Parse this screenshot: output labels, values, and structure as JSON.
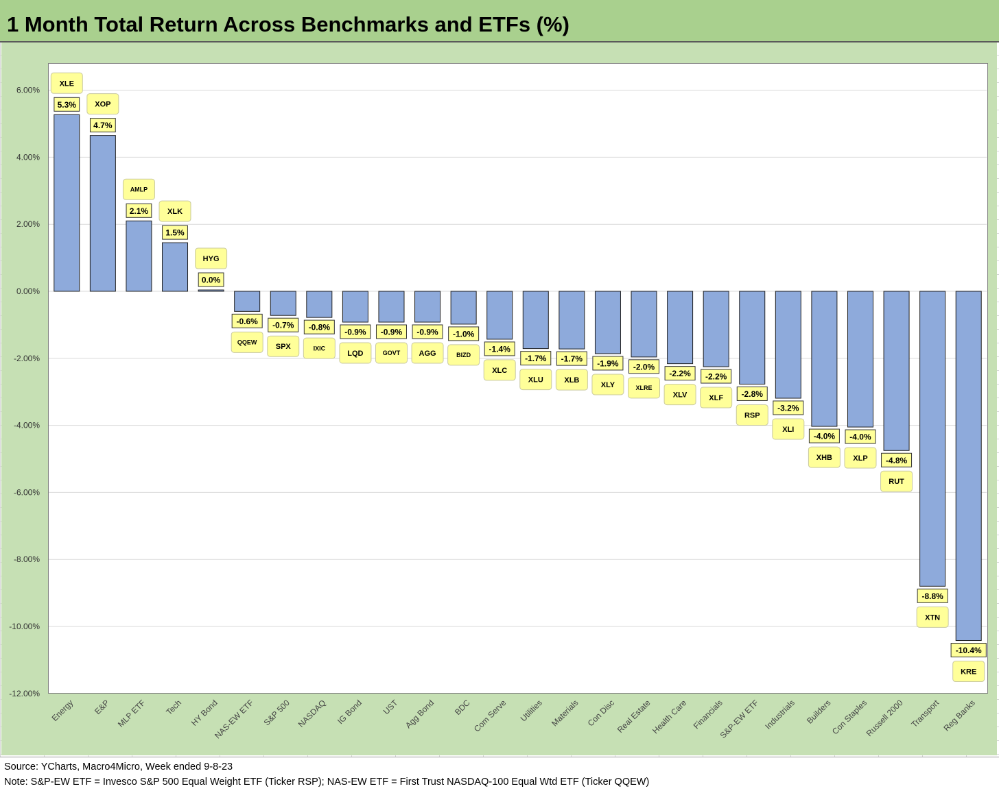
{
  "title": "1 Month Total Return Across Benchmarks and ETFs (%)",
  "footer": {
    "source": "Source: YCharts, Macro4Micro, Week ended 9-8-23",
    "note": "Note: S&P-EW ETF = Invesco S&P 500 Equal Weight ETF (Ticker RSP); NAS-EW ETF = First Trust NASDAQ-100 Equal Wtd ETF (Ticker QQEW)"
  },
  "colors": {
    "bar": "#8eaadb",
    "label_box": "#ffff99",
    "chart_bg": "#c6e0b4",
    "title_bg": "#a9d08e",
    "gridline": "#d9d9d9"
  },
  "chart_data": {
    "type": "bar",
    "title": "1 Month Total Return Across Benchmarks and ETFs (%)",
    "xlabel": "",
    "ylabel": "",
    "ylim": [
      -12,
      6.7
    ],
    "yticks": [
      6,
      4,
      2,
      0,
      -2,
      -4,
      -6,
      -8,
      -10,
      -12
    ],
    "ytick_labels": [
      "6.00%",
      "4.00%",
      "2.00%",
      "0.00%",
      "-2.00%",
      "-4.00%",
      "-6.00%",
      "-8.00%",
      "-10.00%",
      "-12.00%"
    ],
    "grid": true,
    "categories": [
      "Energy",
      "E&P",
      "MLP ETF",
      "Tech",
      "HY Bond",
      "NAS-EW ETF",
      "S&P 500",
      "NASDAQ",
      "IG Bond",
      "UST",
      "Agg Bond",
      "BDC",
      "Com Serve",
      "Utilities",
      "Materials",
      "Con Disc",
      "Real Estate",
      "Health Care",
      "Financials",
      "S&P-EW ETF",
      "Industrials",
      "Builders",
      "Con Staples",
      "Russell 2000",
      "Transport",
      "Reg Banks"
    ],
    "tickers": [
      "XLE",
      "XOP",
      "AMLP",
      "XLK",
      "HYG",
      "QQEW",
      "SPX",
      "IXIC",
      "LQD",
      "GOVT",
      "AGG",
      "BIZD",
      "XLC",
      "XLU",
      "XLB",
      "XLY",
      "XLRE",
      "XLV",
      "XLF",
      "RSP",
      "XLI",
      "XHB",
      "XLP",
      "RUT",
      "XTN",
      "KRE"
    ],
    "values": [
      5.27,
      4.65,
      2.1,
      1.45,
      0.04,
      -0.6,
      -0.72,
      -0.78,
      -0.92,
      -0.92,
      -0.92,
      -0.98,
      -1.43,
      -1.71,
      -1.72,
      -1.86,
      -1.96,
      -2.16,
      -2.25,
      -2.77,
      -3.19,
      -4.03,
      -4.05,
      -4.75,
      -8.8,
      -10.42
    ],
    "value_labels": [
      "5.3%",
      "4.7%",
      "2.1%",
      "1.5%",
      "0.0%",
      "-0.6%",
      "-0.7%",
      "-0.8%",
      "-0.9%",
      "-0.9%",
      "-0.9%",
      "-1.0%",
      "-1.4%",
      "-1.7%",
      "-1.7%",
      "-1.9%",
      "-2.0%",
      "-2.2%",
      "-2.2%",
      "-2.8%",
      "-3.2%",
      "-4.0%",
      "-4.0%",
      "-4.8%",
      "-8.8%",
      "-10.4%"
    ]
  }
}
